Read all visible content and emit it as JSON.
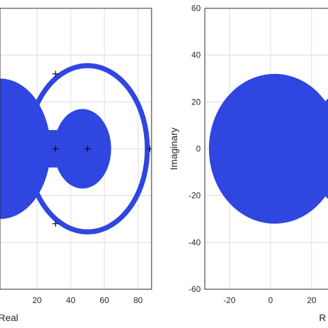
{
  "chart_data": [
    {
      "type": "scatter",
      "title": "",
      "xlabel": "Real",
      "ylabel": "",
      "xlim": [
        -2,
        88
      ],
      "ylim": [
        -60,
        60
      ],
      "x_ticks": [
        20,
        40,
        60,
        80
      ],
      "y_ticks": [],
      "grid": true,
      "colors": {
        "fill": "#2f46e0",
        "marker": "#111111"
      },
      "regions": [
        {
          "shape": "annulus",
          "center": [
            50,
            0
          ],
          "outer_radius": 37,
          "inner_radius": 34
        },
        {
          "shape": "disk",
          "center": [
            -2,
            0
          ],
          "radius": 30
        },
        {
          "shape": "disk",
          "center": [
            47,
            0
          ],
          "radius": 17
        },
        {
          "shape": "bridge",
          "x_range": [
            20,
            34
          ],
          "half_height": 8
        }
      ],
      "markers": [
        {
          "x": 31,
          "y": 32
        },
        {
          "x": 31,
          "y": 0
        },
        {
          "x": 50,
          "y": 0
        },
        {
          "x": 87,
          "y": 0
        },
        {
          "x": 31,
          "y": -32
        }
      ]
    },
    {
      "type": "scatter",
      "title": "",
      "xlabel": "R",
      "ylabel": "Imaginary",
      "xlim": [
        -32,
        28
      ],
      "ylim": [
        -60,
        60
      ],
      "x_ticks": [
        -20,
        0,
        20
      ],
      "y_ticks": [
        60,
        40,
        20,
        0,
        -20,
        -40,
        -60
      ],
      "grid": true,
      "colors": {
        "fill": "#2f46e0"
      },
      "regions": [
        {
          "shape": "disk",
          "center": [
            2,
            0
          ],
          "radius": 32
        },
        {
          "shape": "disk",
          "center": [
            46,
            0
          ],
          "radius": 28
        }
      ]
    }
  ]
}
